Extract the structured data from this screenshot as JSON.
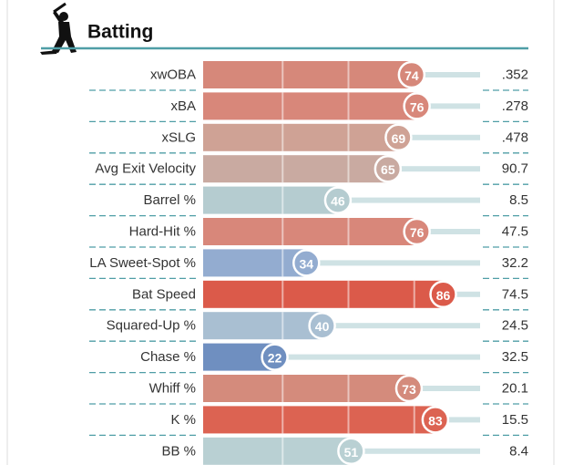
{
  "chart_data": {
    "type": "bar",
    "orientation": "horizontal",
    "title": "Batting",
    "categories": [
      "xwOBA",
      "xBA",
      "xSLG",
      "Avg Exit Velocity",
      "Barrel %",
      "Hard-Hit %",
      "LA Sweet-Spot %",
      "Bat Speed",
      "Squared-Up %",
      "Chase %",
      "Whiff %",
      "K %",
      "BB %"
    ],
    "values": [
      74,
      76,
      69,
      65,
      46,
      76,
      34,
      86,
      40,
      22,
      73,
      83,
      51
    ],
    "stats": [
      ".352",
      ".278",
      ".478",
      "90.7",
      "8.5",
      "47.5",
      "32.2",
      "74.5",
      "24.5",
      "32.5",
      "20.1",
      "15.5",
      "8.4"
    ],
    "colors": [
      "#d6887a",
      "#d8877a",
      "#cfa295",
      "#c9aaa1",
      "#b5ccd0",
      "#d8877a",
      "#93acd0",
      "#db5a4a",
      "#a9bfd2",
      "#6f8fc0",
      "#d48b7c",
      "#dc6352",
      "#b9d0d3"
    ],
    "xlim": [
      0,
      100
    ]
  }
}
